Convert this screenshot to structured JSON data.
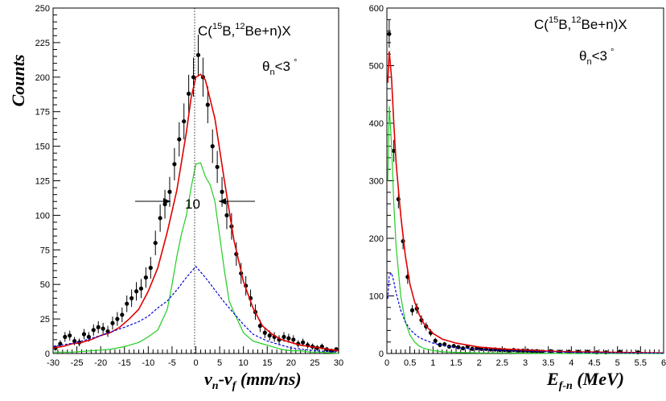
{
  "chart_data": [
    {
      "type": "scatter",
      "ylabel": "Counts",
      "xlabel": "v",
      "xlabel_sub1": "n",
      "xlabel_mid": "-v",
      "xlabel_sub2": "f",
      "xlabel_tail": " (mm/ns)",
      "annotation": {
        "pre": "C(",
        "sup1": "15",
        "mid": "B,",
        "sup2": "12",
        "post": "Be+n)X",
        "theta_sym": "θ",
        "theta_sub": "n",
        "theta_rest": "<3",
        "theta_deg": "°"
      },
      "width_label": "10",
      "xlim": [
        -30,
        30
      ],
      "ylim": [
        0,
        250
      ],
      "xticks": [
        -30,
        -25,
        -20,
        -15,
        -10,
        -5,
        0,
        5,
        10,
        15,
        20,
        25,
        30
      ],
      "yticks": [
        0,
        25,
        50,
        75,
        100,
        125,
        150,
        175,
        200,
        225,
        250
      ],
      "colors": {
        "data": "#000000",
        "total": "#e00000",
        "resonant": "#22cc22",
        "background": "#0000dd"
      },
      "series": [
        {
          "role": "data",
          "style": "points-with-errors",
          "x": [
            -29.5,
            -28.5,
            -27.5,
            -26.5,
            -25.5,
            -24.5,
            -23.5,
            -22.5,
            -21.5,
            -20.5,
            -19.5,
            -18.5,
            -17.5,
            -16.5,
            -15.5,
            -14.5,
            -13.5,
            -12.5,
            -11.5,
            -10.5,
            -9.5,
            -8.5,
            -7.5,
            -6.5,
            -5.5,
            -4.5,
            -3.5,
            -2.5,
            -1.5,
            -0.5,
            0.5,
            1.5,
            2.5,
            3.5,
            4.5,
            5.5,
            6.5,
            7.5,
            8.5,
            9.5,
            10.5,
            11.5,
            12.5,
            13.5,
            14.5,
            15.5,
            16.5,
            17.5,
            18.5,
            19.5,
            20.5,
            21.5,
            22.5,
            23.5,
            24.5,
            25.5,
            26.5,
            27.5,
            28.5,
            29.5
          ],
          "y": [
            4,
            7,
            12,
            13,
            9,
            8,
            14,
            12,
            17,
            19,
            18,
            16,
            22,
            25,
            28,
            36,
            40,
            45,
            47,
            55,
            62,
            80,
            98,
            108,
            117,
            137,
            155,
            168,
            188,
            200,
            216,
            200,
            180,
            150,
            135,
            117,
            100,
            92,
            72,
            58,
            49,
            40,
            30,
            20,
            15,
            13,
            12,
            10,
            12,
            11,
            10,
            7,
            8,
            6,
            5,
            4,
            5,
            3,
            2,
            3
          ],
          "err": [
            2,
            2.6,
            3.5,
            3.6,
            3,
            2.8,
            3.7,
            3.5,
            4.1,
            4.4,
            4.2,
            4,
            4.7,
            5,
            5.3,
            6,
            6.3,
            6.7,
            6.9,
            7.4,
            7.9,
            8.9,
            9.9,
            10.4,
            10.8,
            11.7,
            12.4,
            13,
            13.7,
            14.1,
            14.7,
            14.1,
            13.4,
            12.2,
            11.6,
            10.8,
            10,
            9.6,
            8.5,
            7.6,
            7,
            6.3,
            5.5,
            4.5,
            3.9,
            3.6,
            3.5,
            3.2,
            3.5,
            3.3,
            3.2,
            2.6,
            2.8,
            2.4,
            2.2,
            2,
            2.2,
            1.7,
            1.4,
            1.7
          ]
        },
        {
          "role": "total",
          "style": "line",
          "x": [
            -30,
            -28,
            -26,
            -24,
            -22,
            -20,
            -18,
            -16,
            -14,
            -12,
            -10,
            -8,
            -6,
            -4,
            -2,
            -1,
            0,
            1,
            2,
            4,
            6,
            8,
            10,
            12,
            14,
            16,
            18,
            20,
            22,
            24,
            26,
            28,
            30
          ],
          "y": [
            4,
            5,
            7,
            8,
            10,
            13,
            15,
            19,
            25,
            32,
            45,
            62,
            88,
            118,
            160,
            185,
            200,
            202,
            198,
            170,
            125,
            82,
            52,
            33,
            20,
            14,
            10,
            8,
            6,
            5,
            4,
            3,
            2
          ]
        },
        {
          "role": "resonant",
          "style": "line",
          "x": [
            -30,
            -26,
            -22,
            -18,
            -15,
            -12,
            -10,
            -8,
            -6,
            -5,
            -4,
            -3,
            -2,
            -1,
            0,
            1,
            2,
            3,
            4,
            5,
            6,
            7,
            8,
            10,
            12,
            14,
            16,
            18,
            20,
            22,
            24,
            26,
            30
          ],
          "y": [
            1,
            1,
            2,
            3,
            5,
            8,
            12,
            17,
            32,
            50,
            70,
            87,
            100,
            120,
            137,
            138,
            128,
            122,
            110,
            85,
            60,
            38,
            30,
            15,
            9,
            7,
            5,
            3,
            2,
            2,
            1,
            1,
            0
          ]
        },
        {
          "role": "background",
          "style": "dashed",
          "x": [
            -30,
            -25,
            -20,
            -15,
            -12,
            -10,
            -8,
            -6,
            -4,
            -2,
            0,
            2,
            4,
            6,
            8,
            10,
            12,
            15,
            20,
            25,
            30
          ],
          "y": [
            5,
            8,
            13,
            19,
            23,
            27,
            33,
            38,
            46,
            55,
            63,
            55,
            46,
            37,
            29,
            21,
            14,
            9,
            4,
            2,
            1
          ]
        }
      ]
    },
    {
      "type": "scatter",
      "ylabel": "",
      "xlabel": "E",
      "xlabel_sub1": "f-n",
      "xlabel_tail": " (MeV)",
      "annotation": {
        "pre": "C(",
        "sup1": "15",
        "mid": "B,",
        "sup2": "12",
        "post": "Be+n)X",
        "theta_sym": "θ",
        "theta_sub": "n",
        "theta_rest": "<3",
        "theta_deg": "°"
      },
      "xlim": [
        0,
        6
      ],
      "ylim": [
        0,
        600
      ],
      "xticks": [
        0,
        0.5,
        1,
        1.5,
        2,
        2.5,
        3,
        3.5,
        4,
        4.5,
        5,
        5.5,
        6
      ],
      "yticks": [
        0,
        100,
        200,
        300,
        400,
        500,
        600
      ],
      "colors": {
        "data": "#000000",
        "total": "#e00000",
        "resonant": "#22cc22",
        "background": "#0000dd"
      },
      "series": [
        {
          "role": "data",
          "style": "points-with-errors",
          "x": [
            0.05,
            0.15,
            0.25,
            0.35,
            0.45,
            0.55,
            0.65,
            0.75,
            0.85,
            0.95,
            1.05,
            1.15,
            1.25,
            1.35,
            1.45,
            1.55,
            1.65,
            1.75,
            1.85,
            1.95,
            2.05,
            2.15,
            2.25,
            2.35,
            2.45,
            2.55,
            2.65,
            2.75,
            2.85,
            2.95,
            3.05,
            3.15,
            3.25,
            3.35,
            3.55,
            3.75,
            3.95,
            4.15,
            4.35,
            4.55,
            4.75,
            5.05,
            5.45
          ],
          "y": [
            555,
            352,
            268,
            195,
            133,
            75,
            78,
            58,
            47,
            36,
            22,
            15,
            16,
            12,
            13,
            11,
            9,
            12,
            8,
            9,
            8,
            8,
            7,
            7,
            6,
            6,
            5,
            6,
            5,
            5,
            5,
            4,
            4,
            3,
            4,
            3,
            3,
            3,
            3,
            2,
            2,
            3,
            2
          ],
          "err": [
            24,
            19,
            16,
            14,
            12,
            9,
            9,
            8,
            7,
            6,
            5,
            4,
            4,
            3.5,
            3.6,
            3.3,
            3,
            3.5,
            2.8,
            3,
            2.8,
            2.8,
            2.6,
            2.6,
            2.4,
            2.4,
            2.2,
            2.4,
            2.2,
            2.2,
            2.2,
            2,
            2,
            1.7,
            2,
            1.7,
            1.7,
            1.7,
            1.7,
            1.4,
            1.4,
            1.7,
            1.4
          ]
        },
        {
          "role": "total",
          "style": "line",
          "x": [
            0.02,
            0.05,
            0.1,
            0.15,
            0.2,
            0.3,
            0.4,
            0.5,
            0.6,
            0.7,
            0.8,
            1.0,
            1.2,
            1.5,
            2.0,
            2.5,
            3.0,
            3.5,
            4.0,
            4.5,
            5.0,
            5.5,
            6.0
          ],
          "y": [
            470,
            525,
            480,
            400,
            330,
            240,
            170,
            120,
            90,
            68,
            52,
            35,
            25,
            18,
            11,
            8,
            6,
            4,
            3,
            2.5,
            2,
            1.5,
            1
          ]
        },
        {
          "role": "resonant",
          "style": "line",
          "x": [
            0.02,
            0.05,
            0.1,
            0.15,
            0.2,
            0.3,
            0.4,
            0.5,
            0.6,
            0.7,
            0.8,
            1.0,
            1.2,
            1.5,
            2.0,
            2.5,
            3.0,
            4.0,
            5.0,
            6.0
          ],
          "y": [
            300,
            430,
            365,
            260,
            185,
            100,
            55,
            32,
            20,
            13,
            9,
            5,
            3,
            2,
            1,
            1,
            0.5,
            0,
            0,
            0
          ]
        },
        {
          "role": "background",
          "style": "dashed",
          "x": [
            0.02,
            0.05,
            0.1,
            0.15,
            0.2,
            0.3,
            0.4,
            0.5,
            0.6,
            0.7,
            0.8,
            1.0,
            1.2,
            1.5,
            2.0,
            2.5,
            3.0,
            3.5,
            4.0,
            5.0,
            6.0
          ],
          "y": [
            95,
            135,
            140,
            125,
            105,
            75,
            55,
            42,
            34,
            28,
            24,
            18,
            14,
            10,
            7,
            5,
            4,
            3,
            2,
            1,
            0.5
          ]
        }
      ]
    }
  ]
}
